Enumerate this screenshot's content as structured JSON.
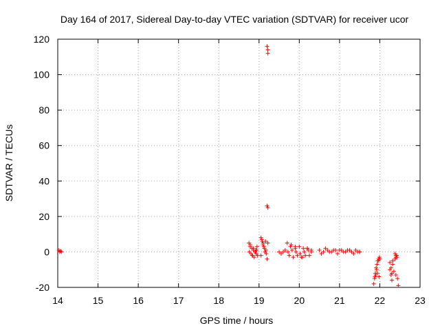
{
  "chart_data": {
    "type": "scatter",
    "title": "Day 164 of 2017, Sidereal Day-to-day VTEC variation (SDTVAR) for receiver ucor",
    "xlabel": "GPS time / hours",
    "ylabel": "SDTVAR / TECUs",
    "xlim": [
      14,
      23
    ],
    "ylim": [
      -20,
      120
    ],
    "x_ticks": [
      "14",
      "15",
      "16",
      "17",
      "18",
      "19",
      "20",
      "21",
      "22",
      "23"
    ],
    "y_ticks": [
      "-20",
      "0",
      "20",
      "40",
      "60",
      "80",
      "100",
      "120"
    ],
    "grid": true,
    "legend": "none",
    "marker": "plus",
    "color": "#ff0000",
    "series": [
      {
        "x": [
          14.03,
          14.05,
          14.07,
          14.09,
          18.75,
          18.78,
          18.82,
          18.86,
          18.9,
          18.93,
          18.96,
          18.78,
          18.83,
          18.88,
          18.92,
          18.95,
          18.8,
          18.86,
          18.91,
          18.76,
          18.84,
          18.94,
          19.05,
          19.08,
          19.1,
          19.13,
          19.15,
          19.18,
          19.07,
          19.12,
          19.17,
          19.2,
          19.05,
          19.1,
          19.16,
          19.22,
          19.2,
          19.22,
          19.22,
          19.2,
          19.22,
          19.5,
          19.55,
          19.6,
          19.65,
          19.7,
          19.8,
          19.9,
          20.0,
          20.1,
          20.2,
          20.3,
          19.75,
          19.85,
          19.95,
          20.05,
          20.15,
          20.25,
          19.72,
          19.82,
          19.92,
          20.02,
          20.12,
          20.22,
          20.3,
          19.78,
          19.9,
          20.08,
          20.2,
          20.5,
          20.6,
          20.7,
          20.8,
          20.9,
          21.0,
          21.1,
          21.2,
          21.3,
          21.4,
          21.5,
          20.55,
          20.75,
          20.95,
          21.15,
          21.35,
          21.5,
          20.65,
          20.85,
          21.05,
          21.25,
          21.45,
          21.85,
          21.87,
          21.89,
          21.91,
          21.93,
          21.95,
          21.97,
          21.99,
          21.88,
          21.92,
          21.96,
          22.0,
          21.9,
          21.94,
          21.98,
          22.25,
          22.28,
          22.3,
          22.32,
          22.3,
          22.35,
          22.28,
          22.25,
          22.32,
          22.38,
          22.4,
          22.42,
          22.44,
          22.4,
          22.46,
          22.43,
          22.38,
          22.4
        ],
        "y": [
          1,
          0,
          0.5,
          0,
          5,
          3,
          2,
          1,
          0,
          -1,
          -2,
          4,
          -2,
          -3,
          1,
          3,
          -1,
          2,
          0,
          0,
          -2,
          1,
          8,
          6,
          4,
          2,
          0,
          -1,
          7,
          3,
          1,
          -4,
          -2,
          5,
          6,
          5,
          116,
          114,
          112,
          26,
          25,
          0,
          -1,
          0,
          1,
          5,
          4,
          3,
          3,
          2,
          2,
          1,
          -2,
          -3,
          -2,
          -3,
          -2,
          -2,
          0,
          1,
          0,
          -1,
          0,
          1,
          0,
          3,
          2,
          -3,
          2,
          1,
          0,
          1,
          0,
          1,
          1,
          0,
          1,
          0,
          1,
          0,
          -1,
          0,
          -1,
          0,
          -1,
          0,
          2,
          1,
          1,
          1,
          0,
          -18,
          -15,
          -12,
          -9,
          -7,
          -5,
          -4,
          -3,
          -14,
          -10,
          -5,
          -4,
          -13,
          -12,
          -14,
          -6,
          -9,
          -12,
          -7,
          -16,
          -11,
          -13,
          -10,
          -5,
          -1,
          -3,
          -2,
          -15,
          -13,
          -19,
          -3,
          -4,
          -2
        ]
      }
    ]
  }
}
